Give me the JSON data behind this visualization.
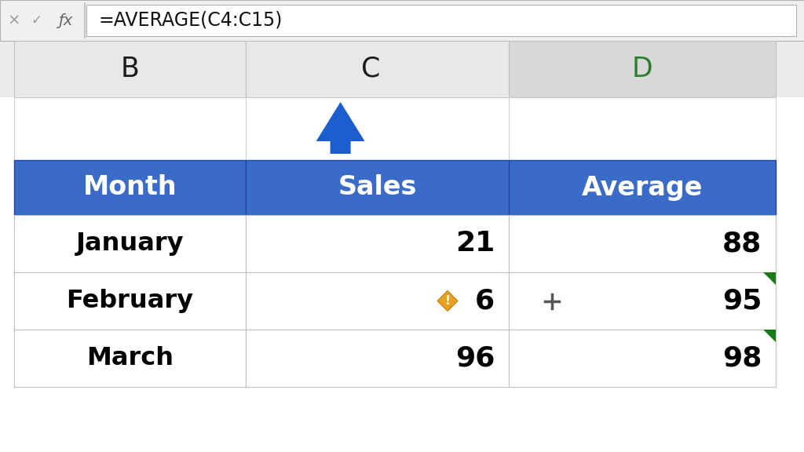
{
  "formula_bar_text": "=AVERAGE(C4:C15)",
  "col_headers": [
    "B",
    "C",
    "D"
  ],
  "col_header_colors": [
    "#e8e8e8",
    "#e8e8e8",
    "#d8d8d8"
  ],
  "col_header_text_colors": [
    "#1a1a1a",
    "#1a1a1a",
    "#2e7d32"
  ],
  "table_header": [
    "Month",
    "Sales",
    "Average"
  ],
  "table_header_bg": "#3b6bc9",
  "table_header_text_color": "#ffffff",
  "rows": [
    [
      "January",
      "21",
      "88"
    ],
    [
      "February",
      "6",
      "95"
    ],
    [
      "March",
      "96",
      "98"
    ]
  ],
  "arrow_color": "#1a5ecf",
  "toolbar_bg": "#f0f0f0",
  "formula_bg": "#ffffff",
  "grid_color": "#c0c0c0",
  "cell_text_color": "#000000",
  "green_triangle_color": "#1a7a1a",
  "cross_icon_color": "#555555",
  "fig_w": 1024,
  "fig_h": 576
}
